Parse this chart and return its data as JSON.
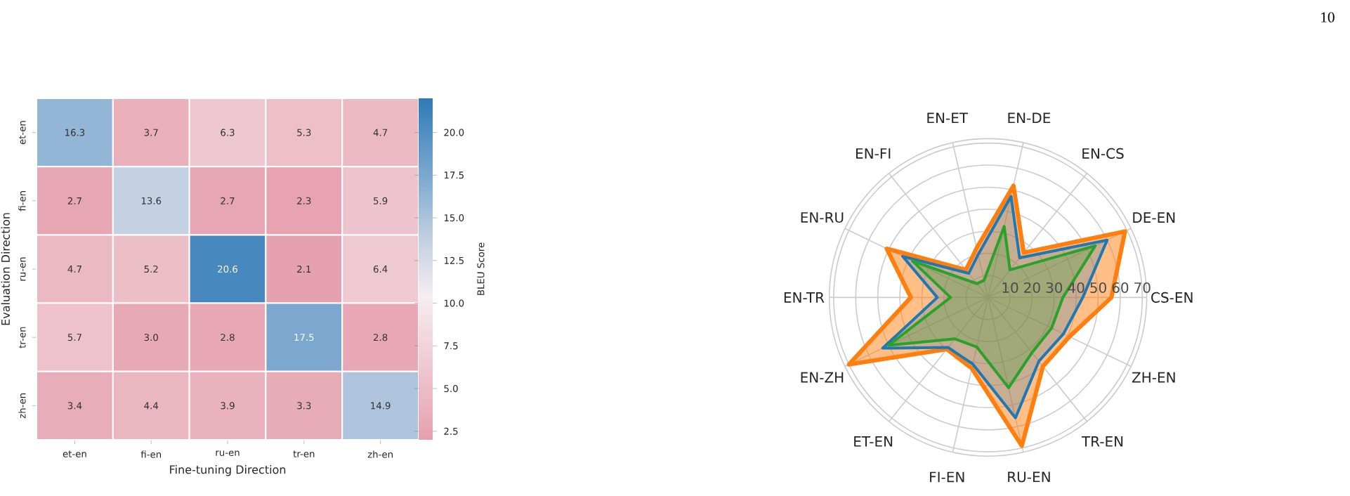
{
  "chart_data": [
    {
      "type": "heatmap",
      "xlabel": "Fine-tuning Direction",
      "ylabel": "Evaluation Direction",
      "clabel": "BLEU Score",
      "categories": [
        "et-en",
        "fi-en",
        "ru-en",
        "tr-en",
        "zh-en"
      ],
      "y_categories": [
        "et-en",
        "fi-en",
        "ru-en",
        "tr-en",
        "zh-en"
      ],
      "cells": [
        [
          16.3,
          3.7,
          6.3,
          5.3,
          4.7
        ],
        [
          2.7,
          13.6,
          2.7,
          2.3,
          5.9
        ],
        [
          4.7,
          5.2,
          20.6,
          2.1,
          6.4
        ],
        [
          5.7,
          3.0,
          2.8,
          17.5,
          2.8
        ],
        [
          3.4,
          4.4,
          3.9,
          3.3,
          14.9
        ]
      ],
      "clim": [
        2.0,
        22.0
      ],
      "cticks": [
        2.5,
        {
          "value": 5,
          "label": "5.0"
        },
        7.5,
        {
          "value": 10,
          "label": "10.0"
        },
        12.5,
        {
          "value": 15,
          "label": "15.0"
        },
        17.5,
        {
          "value": 20,
          "label": "20.0"
        }
      ],
      "cell_labels": [
        [
          "16.3",
          "3.7",
          "6.3",
          "5.3",
          "4.7"
        ],
        [
          "2.7",
          "13.6",
          "2.7",
          "2.3",
          "5.9"
        ],
        [
          "4.7",
          "5.2",
          "20.6",
          "2.1",
          "6.4"
        ],
        [
          "5.7",
          "3.0",
          "2.8",
          "17.5",
          "2.8"
        ],
        [
          "3.4",
          "4.4",
          "3.9",
          "3.3",
          "14.9"
        ]
      ]
    },
    {
      "type": "radar",
      "categories": [
        "EN-DE",
        "EN-CS",
        "DE-EN",
        "CS-EN",
        "ZH-EN",
        "TR-EN",
        "RU-EN",
        "FI-EN",
        "ET-EN",
        "EN-ZH",
        "EN-TR",
        "EN-RU",
        "EN-FI",
        "EN-ET"
      ],
      "series": [
        {
          "color": "#ff7f0e",
          "values": [
            52,
            26,
            69,
            56,
            41,
            40,
            69,
            33,
            30,
            70,
            35,
            51,
            16,
            23
          ]
        },
        {
          "color": "#1f77b4",
          "values": [
            47,
            23,
            60,
            43,
            38,
            37,
            56,
            31,
            29,
            53,
            23,
            43,
            14,
            20
          ]
        },
        {
          "color": "#2ca02c",
          "values": [
            33,
            16,
            54,
            34,
            32,
            32,
            42,
            23,
            24,
            50,
            17,
            38,
            8,
            8
          ]
        }
      ],
      "ylim": [
        0,
        72
      ],
      "yticks": [
        10,
        20,
        30,
        40,
        50,
        60,
        70
      ],
      "grid": true,
      "annotations": [
        "10"
      ]
    }
  ]
}
